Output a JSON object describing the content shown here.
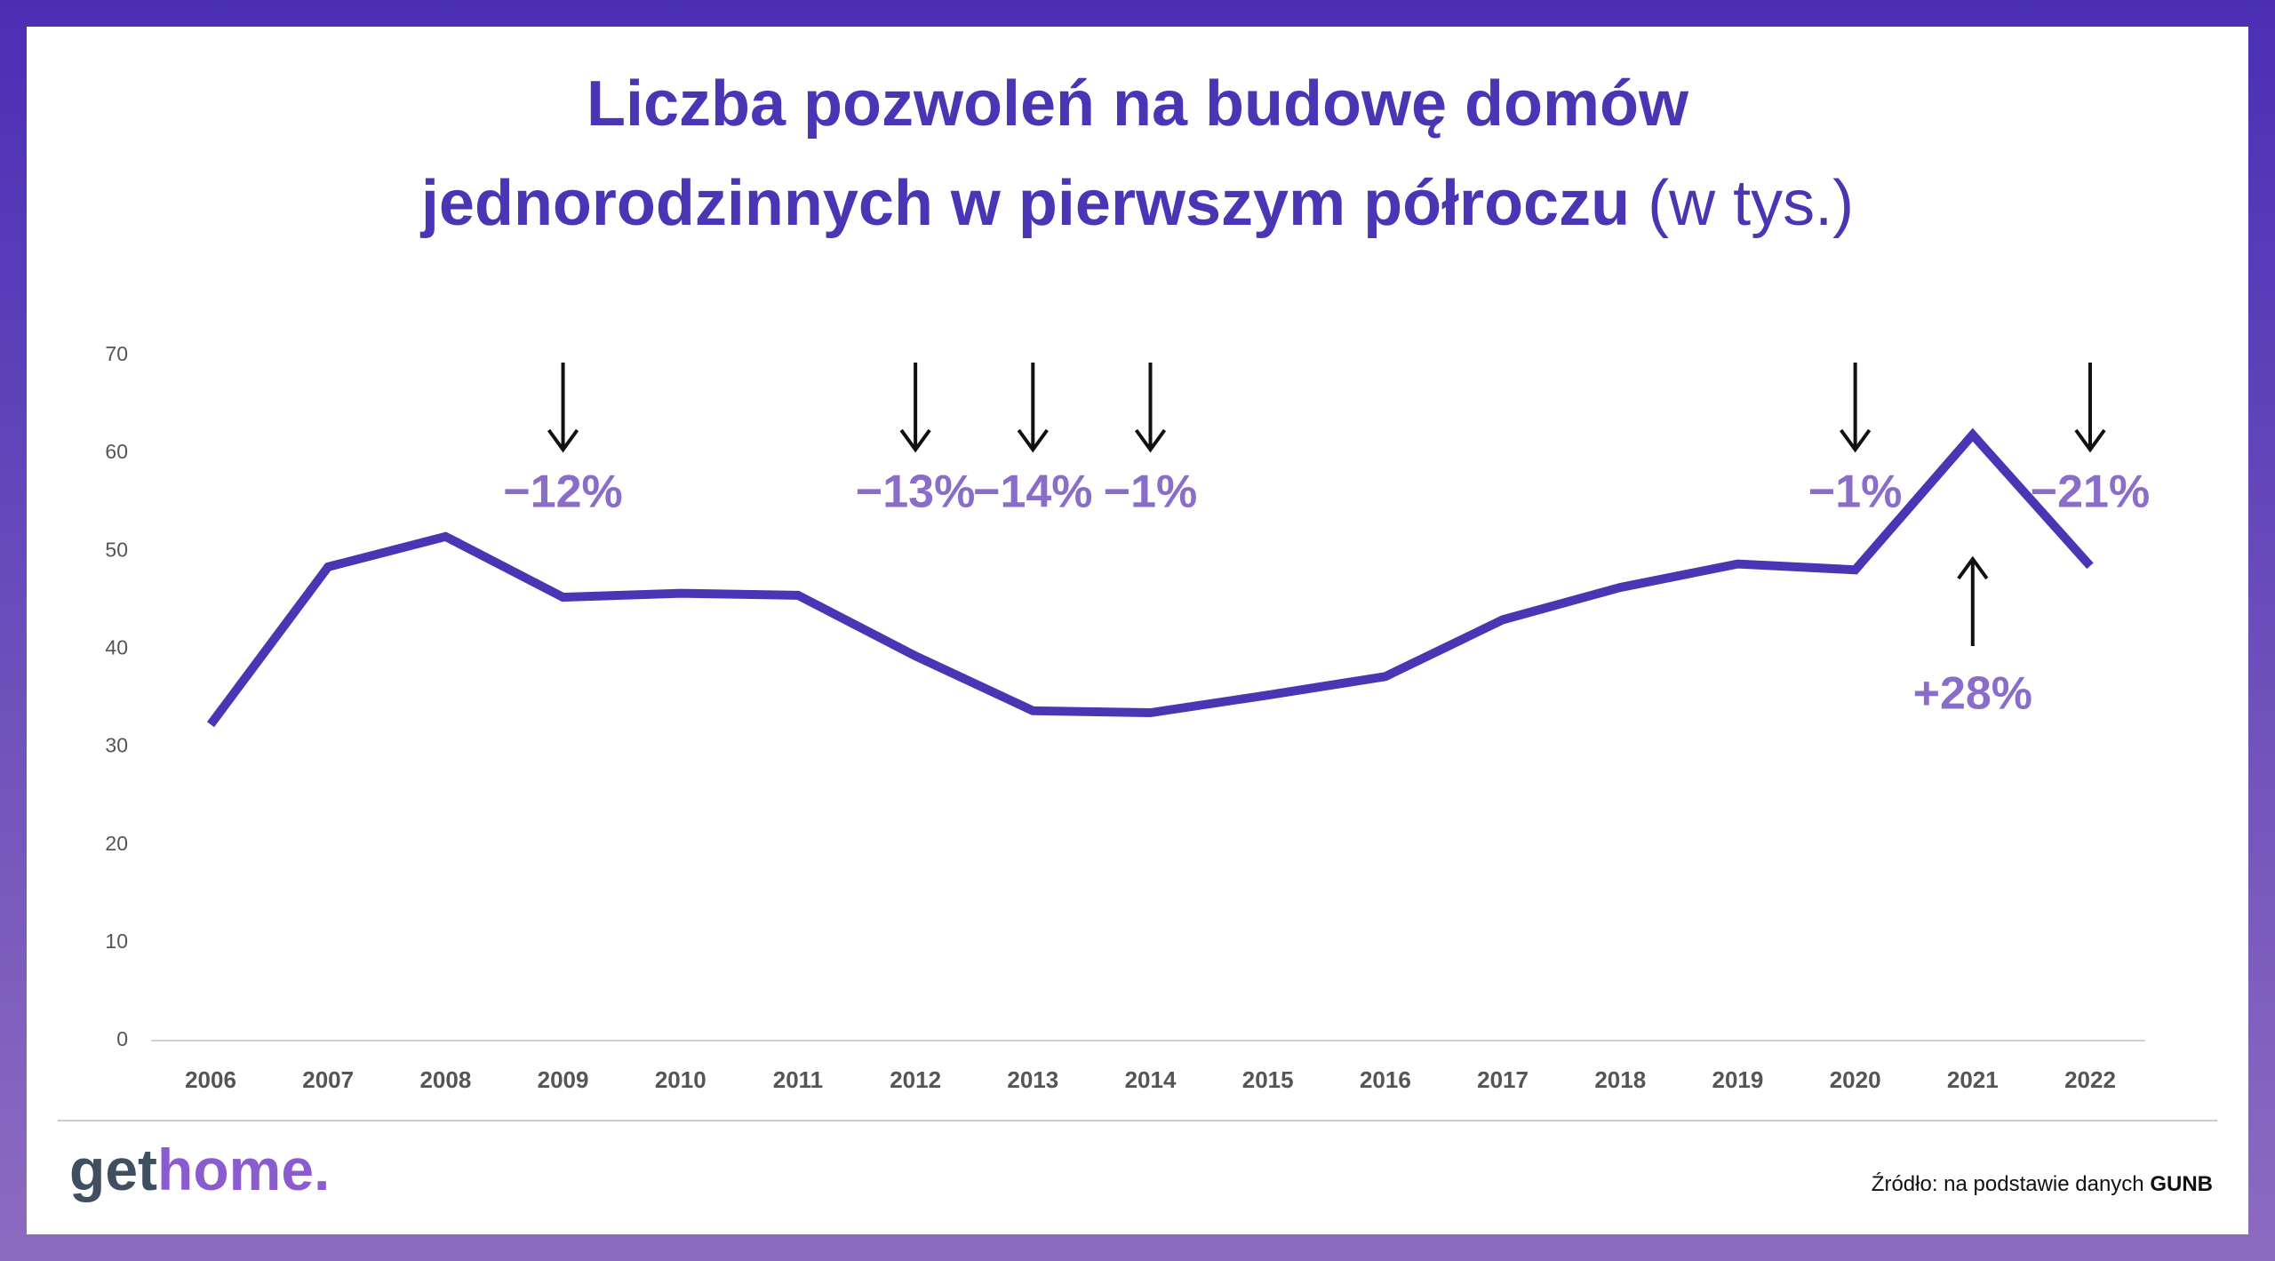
{
  "chart_data": {
    "type": "line",
    "title": "Liczba pozwoleń na budowę domów jednorodzinnych w pierwszym półroczu",
    "title_unit": "(w tys.)",
    "categories": [
      "2006",
      "2007",
      "2008",
      "2009",
      "2010",
      "2011",
      "2012",
      "2013",
      "2014",
      "2015",
      "2016",
      "2017",
      "2018",
      "2019",
      "2020",
      "2021",
      "2022"
    ],
    "series": [
      {
        "color": "#4a35b5",
        "values": [
          32.3,
          48.4,
          51.5,
          45.3,
          45.7,
          45.5,
          39.3,
          33.7,
          33.5,
          35.3,
          37.2,
          43.0,
          46.3,
          48.7,
          48.1,
          61.9,
          48.5
        ]
      }
    ],
    "ylim": [
      0,
      70
    ],
    "yticks": [
      0,
      10,
      20,
      30,
      40,
      50,
      60,
      70
    ],
    "grid": false,
    "annotations": [
      {
        "text": "−12%",
        "category": "2009",
        "direction": "down"
      },
      {
        "text": "−13%",
        "category": "2012",
        "direction": "down"
      },
      {
        "text": "−14%",
        "category": "2013",
        "direction": "down"
      },
      {
        "text": "−1%",
        "category": "2014",
        "direction": "down"
      },
      {
        "text": "−1%",
        "category": "2020",
        "direction": "down"
      },
      {
        "text": "+28%",
        "category": "2021",
        "direction": "up"
      },
      {
        "text": "−21%",
        "category": "2022",
        "direction": "down"
      }
    ],
    "annotation_color": "#8a6cc9"
  },
  "footer": {
    "logo_get": "get",
    "logo_home": "home.",
    "source": "Źródło: na podstawie danych",
    "source_bold": "GUNB"
  }
}
